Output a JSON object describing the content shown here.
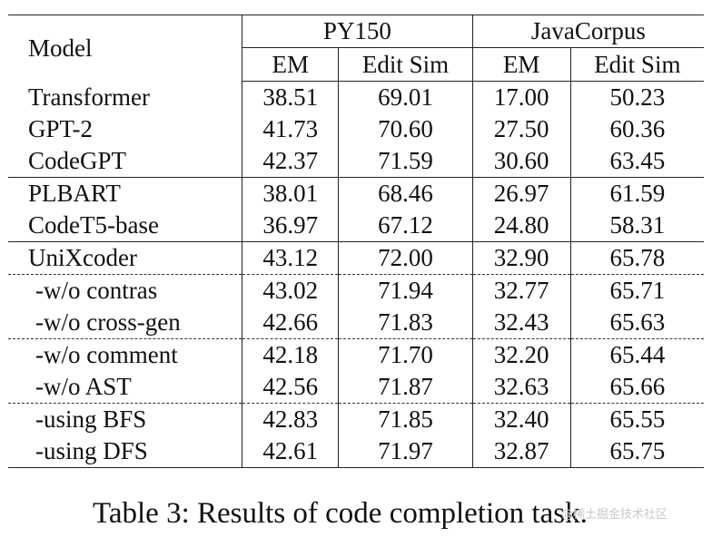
{
  "table": {
    "header": {
      "model": "Model",
      "groups": [
        "PY150",
        "JavaCorpus"
      ],
      "metrics": [
        "EM",
        "Edit Sim",
        "EM",
        "Edit Sim"
      ]
    },
    "rows": [
      {
        "model": "Transformer",
        "py_em": "38.51",
        "py_es": "69.01",
        "java_em": "17.00",
        "java_es": "50.23"
      },
      {
        "model": "GPT-2",
        "py_em": "41.73",
        "py_es": "70.60",
        "java_em": "27.50",
        "java_es": "60.36"
      },
      {
        "model": "CodeGPT",
        "py_em": "42.37",
        "py_es": "71.59",
        "java_em": "30.60",
        "java_es": "63.45"
      },
      {
        "model": "PLBART",
        "py_em": "38.01",
        "py_es": "68.46",
        "java_em": "26.97",
        "java_es": "61.59"
      },
      {
        "model": "CodeT5-base",
        "py_em": "36.97",
        "py_es": "67.12",
        "java_em": "24.80",
        "java_es": "58.31"
      },
      {
        "model": "UniXcoder",
        "py_em": "43.12",
        "py_es": "72.00",
        "java_em": "32.90",
        "java_es": "65.78"
      },
      {
        "model": "-w/o contras",
        "py_em": "43.02",
        "py_es": "71.94",
        "java_em": "32.77",
        "java_es": "65.71"
      },
      {
        "model": "-w/o cross-gen",
        "py_em": "42.66",
        "py_es": "71.83",
        "java_em": "32.43",
        "java_es": "65.63"
      },
      {
        "model": "-w/o comment",
        "py_em": "42.18",
        "py_es": "71.70",
        "java_em": "32.20",
        "java_es": "65.44"
      },
      {
        "model": "-w/o AST",
        "py_em": "42.56",
        "py_es": "71.87",
        "java_em": "32.63",
        "java_es": "65.66"
      },
      {
        "model": "-using BFS",
        "py_em": "42.83",
        "py_es": "71.85",
        "java_em": "32.40",
        "java_es": "65.55"
      },
      {
        "model": "-using DFS",
        "py_em": "42.61",
        "py_es": "71.97",
        "java_em": "32.87",
        "java_es": "65.75"
      }
    ]
  },
  "caption": "Table 3: Results of code completion task.",
  "watermark": "@稀土掘金技术社区"
}
